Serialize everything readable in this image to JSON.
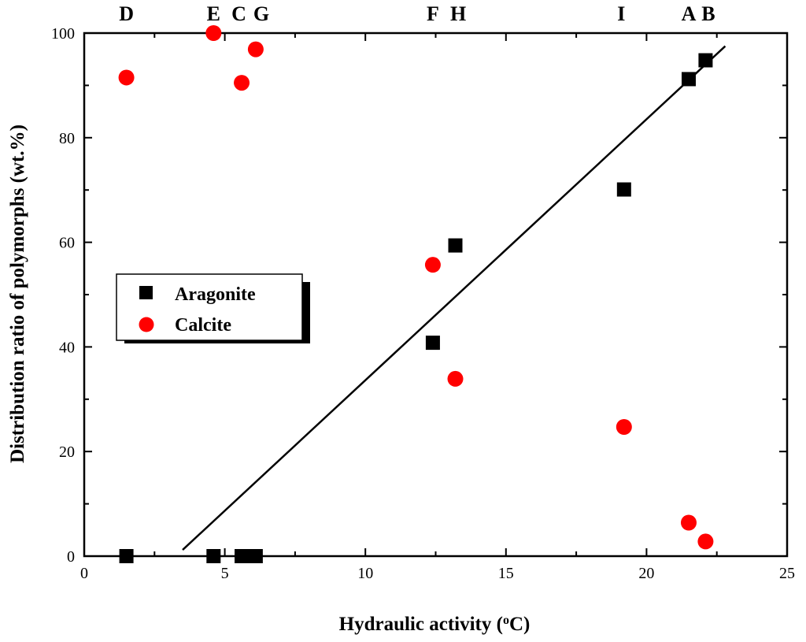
{
  "chart_data": {
    "type": "scatter",
    "title": "",
    "xlabel": "Hydraulic activity (",
    "xlabel_super": "o",
    "xlabel_unit": "C)",
    "ylabel": "Distribution ratio of polymorphs (wt.%)",
    "xlim": [
      0,
      25
    ],
    "ylim": [
      0,
      100
    ],
    "x_ticks": [
      0,
      5,
      10,
      15,
      20,
      25
    ],
    "x_tick_labels": [
      "0",
      "5",
      "10",
      "15",
      "20",
      "25"
    ],
    "y_ticks": [
      0,
      20,
      40,
      60,
      80,
      100
    ],
    "y_tick_labels": [
      "0",
      "20",
      "40",
      "60",
      "80",
      "100"
    ],
    "grid": false,
    "legend_position": "middle-left",
    "series": [
      {
        "name": "Aragonite",
        "marker": "square",
        "color": "#000000",
        "points": [
          {
            "x": 1.5,
            "y": 0
          },
          {
            "x": 4.6,
            "y": 0
          },
          {
            "x": 5.6,
            "y": 0
          },
          {
            "x": 6.1,
            "y": 0
          },
          {
            "x": 12.4,
            "y": 40.8
          },
          {
            "x": 13.2,
            "y": 59.4
          },
          {
            "x": 19.2,
            "y": 70.1
          },
          {
            "x": 21.5,
            "y": 91.2
          },
          {
            "x": 22.1,
            "y": 94.8
          }
        ]
      },
      {
        "name": "Calcite",
        "marker": "circle",
        "color": "#ff0000",
        "points": [
          {
            "x": 1.5,
            "y": 91.5
          },
          {
            "x": 4.6,
            "y": 100
          },
          {
            "x": 5.6,
            "y": 90.5
          },
          {
            "x": 6.1,
            "y": 96.9
          },
          {
            "x": 12.4,
            "y": 55.7
          },
          {
            "x": 13.2,
            "y": 33.9
          },
          {
            "x": 19.2,
            "y": 24.7
          },
          {
            "x": 21.5,
            "y": 6.4
          },
          {
            "x": 22.1,
            "y": 2.8
          }
        ]
      }
    ],
    "fit_line": {
      "x": [
        3.5,
        22.8
      ],
      "y": [
        1.2,
        97.5
      ],
      "color": "#000000"
    },
    "sample_labels": [
      {
        "text": "D",
        "x": 1.5
      },
      {
        "text": "E",
        "x": 4.6
      },
      {
        "text": "C",
        "x": 5.5
      },
      {
        "text": "G",
        "x": 6.3
      },
      {
        "text": "F",
        "x": 12.4
      },
      {
        "text": "H",
        "x": 13.3
      },
      {
        "text": "I",
        "x": 19.1
      },
      {
        "text": "A",
        "x": 21.5
      },
      {
        "text": "B",
        "x": 22.2
      }
    ]
  }
}
